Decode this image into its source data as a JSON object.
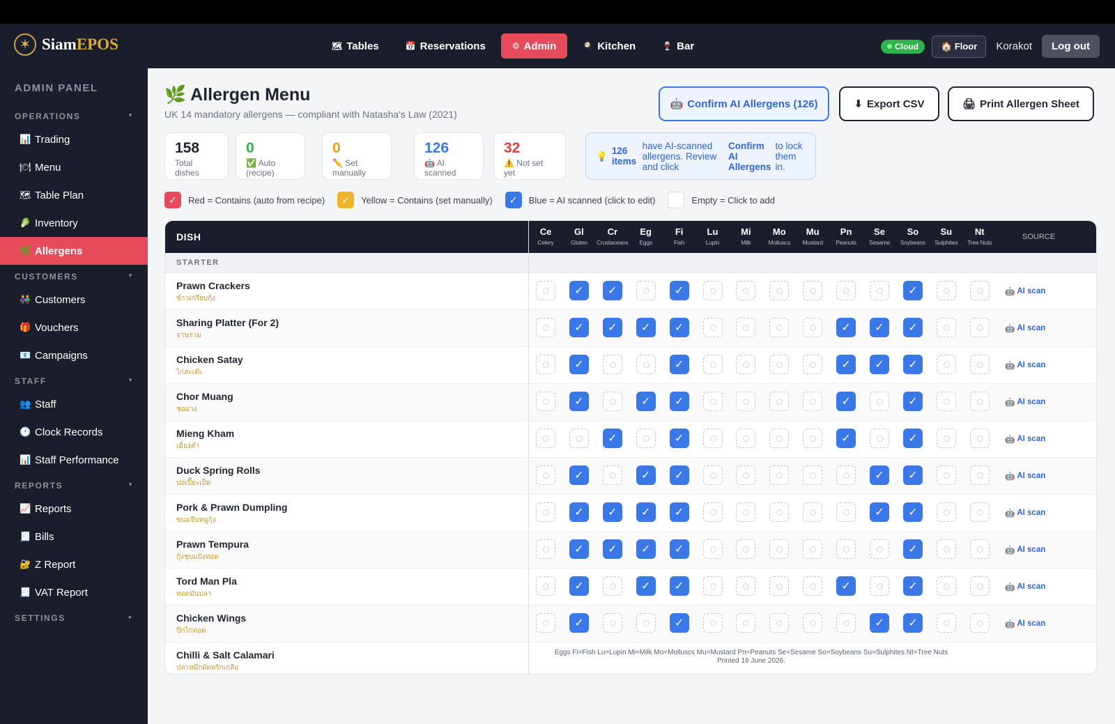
{
  "app": {
    "logo_main": "Siam",
    "logo_accent": "EPOS"
  },
  "nav": [
    {
      "icon": "🗺",
      "label": "Tables",
      "active": false
    },
    {
      "icon": "📅",
      "label": "Reservations",
      "active": false
    },
    {
      "icon": "⚙",
      "label": "Admin",
      "active": true
    },
    {
      "icon": "🍳",
      "label": "Kitchen",
      "active": false
    },
    {
      "icon": "🍷",
      "label": "Bar",
      "active": false
    }
  ],
  "header_right": {
    "cloud": "Cloud",
    "floor": "Floor",
    "user": "Korakot",
    "logout": "Log out"
  },
  "sidebar": {
    "title": "ADMIN PANEL",
    "sections": {
      "operations": "OPERATIONS",
      "customers": "CUSTOMERS",
      "staff": "STAFF",
      "reports": "REPORTS",
      "settings": "SETTINGS"
    },
    "items": {
      "trading": {
        "icon": "📊",
        "label": "Trading"
      },
      "menu": {
        "icon": "🍽",
        "label": "Menu"
      },
      "table_plan": {
        "icon": "🗺",
        "label": "Table Plan"
      },
      "inventory": {
        "icon": "🥬",
        "label": "Inventory"
      },
      "allergens": {
        "icon": "🌿",
        "label": "Allergens"
      },
      "customers": {
        "icon": "👫",
        "label": "Customers"
      },
      "vouchers": {
        "icon": "🎁",
        "label": "Vouchers"
      },
      "campaigns": {
        "icon": "📧",
        "label": "Campaigns"
      },
      "staff": {
        "icon": "👥",
        "label": "Staff"
      },
      "clock": {
        "icon": "🕐",
        "label": "Clock Records"
      },
      "perf": {
        "icon": "📊",
        "label": "Staff Performance"
      },
      "reports": {
        "icon": "📈",
        "label": "Reports"
      },
      "bills": {
        "icon": "🧾",
        "label": "Bills"
      },
      "z": {
        "icon": "🔐",
        "label": "Z Report"
      },
      "vat": {
        "icon": "🧾",
        "label": "VAT Report"
      }
    }
  },
  "page": {
    "icon": "🌿",
    "title": "Allergen Menu",
    "subtitle": "UK 14 mandatory allergens — compliant with Natasha's Law (2021)",
    "btn_confirm": "Confirm AI Allergens (126)",
    "btn_export": "Export CSV",
    "btn_print": "Print Allergen Sheet"
  },
  "stats": [
    {
      "num": "158",
      "label": "Total dishes",
      "color": "#1f2430"
    },
    {
      "num": "0",
      "label": "✅ Auto (recipe)",
      "color": "#2fb34a"
    },
    {
      "num": "0",
      "label": "✏️ Set manually",
      "color": "#e0a21c"
    },
    {
      "num": "126",
      "label": "🤖 AI scanned",
      "color": "#3b78e7"
    },
    {
      "num": "32",
      "label": "⚠️ Not set yet",
      "color": "#d9423f"
    }
  ],
  "info": {
    "icon": "💡",
    "count": "126 items",
    "text1": "have AI-scanned allergens. Review and click",
    "bold": "Confirm AI Allergens",
    "text2": "to lock them in."
  },
  "legend": [
    {
      "label": "Red = Contains (auto from recipe)",
      "color": "#e54b5a",
      "mark": "✓"
    },
    {
      "label": "Yellow = Contains (set manually)",
      "color": "#f0b429",
      "mark": "✓"
    },
    {
      "label": "Blue = AI scanned (click to edit)",
      "color": "#3b78e7",
      "mark": "✓"
    },
    {
      "label": "Empty = Click to add",
      "color": "#ffffff",
      "mark": ""
    }
  ],
  "table": {
    "dish_header": "DISH",
    "source_header": "SOURCE",
    "allergens": [
      {
        "code": "Ce",
        "name": "Celery"
      },
      {
        "code": "Gl",
        "name": "Gluten"
      },
      {
        "code": "Cr",
        "name": "Crustaceans"
      },
      {
        "code": "Eg",
        "name": "Eggs"
      },
      {
        "code": "Fi",
        "name": "Fish"
      },
      {
        "code": "Lu",
        "name": "Lupin"
      },
      {
        "code": "Mi",
        "name": "Milk"
      },
      {
        "code": "Mo",
        "name": "Molluscs"
      },
      {
        "code": "Mu",
        "name": "Mustard"
      },
      {
        "code": "Pn",
        "name": "Peanuts"
      },
      {
        "code": "Se",
        "name": "Sesame"
      },
      {
        "code": "So",
        "name": "Soybeans"
      },
      {
        "code": "Su",
        "name": "Sulphites"
      },
      {
        "code": "Nt",
        "name": "Tree Nuts"
      }
    ],
    "category": "STARTER",
    "rows": [
      {
        "en": "Prawn Crackers",
        "th": "ข้าวเกรียบกุ้ง",
        "a": [
          0,
          1,
          1,
          0,
          1,
          0,
          0,
          0,
          0,
          0,
          0,
          1,
          0,
          0
        ],
        "source": "AI scan"
      },
      {
        "en": "Sharing Platter (For 2)",
        "th": "จานรวม",
        "a": [
          0,
          1,
          1,
          1,
          1,
          0,
          0,
          0,
          0,
          1,
          1,
          1,
          0,
          0
        ],
        "source": "AI scan"
      },
      {
        "en": "Chicken Satay",
        "th": "ไก่สะเต๊ะ",
        "a": [
          0,
          1,
          0,
          0,
          1,
          0,
          0,
          0,
          0,
          1,
          1,
          1,
          0,
          0
        ],
        "source": "AI scan"
      },
      {
        "en": "Chor Muang",
        "th": "ช่อม่วง",
        "a": [
          0,
          1,
          0,
          1,
          1,
          0,
          0,
          0,
          0,
          1,
          0,
          1,
          0,
          0
        ],
        "source": "AI scan"
      },
      {
        "en": "Mieng Kham",
        "th": "เมี่ยงคำ",
        "a": [
          0,
          0,
          1,
          0,
          1,
          0,
          0,
          0,
          0,
          1,
          0,
          1,
          0,
          0
        ],
        "source": "AI scan"
      },
      {
        "en": "Duck Spring Rolls",
        "th": "ปอเปี๊ยะเป็ด",
        "a": [
          0,
          1,
          0,
          1,
          1,
          0,
          0,
          0,
          0,
          0,
          1,
          1,
          0,
          0
        ],
        "source": "AI scan"
      },
      {
        "en": "Pork & Prawn Dumpling",
        "th": "ขนมจีบหมูกุ้ง",
        "a": [
          0,
          1,
          1,
          1,
          1,
          0,
          0,
          0,
          0,
          0,
          1,
          1,
          0,
          0
        ],
        "source": "AI scan"
      },
      {
        "en": "Prawn Tempura",
        "th": "กุ้งชุบแป้งทอด",
        "a": [
          0,
          1,
          1,
          1,
          1,
          0,
          0,
          0,
          0,
          0,
          0,
          1,
          0,
          0
        ],
        "source": "AI scan"
      },
      {
        "en": "Tord Man Pla",
        "th": "ทอดมันปลา",
        "a": [
          0,
          1,
          0,
          1,
          1,
          0,
          0,
          0,
          0,
          1,
          0,
          1,
          0,
          0
        ],
        "source": "AI scan"
      },
      {
        "en": "Chicken Wings",
        "th": "ปีกไก่ทอด",
        "a": [
          0,
          1,
          0,
          0,
          1,
          0,
          0,
          0,
          0,
          0,
          1,
          1,
          0,
          0
        ],
        "source": "AI scan"
      },
      {
        "en": "Chilli & Salt Calamari",
        "th": "ปลาหมึกผัดพริกเกลือ",
        "a": null,
        "source": ""
      }
    ],
    "footer_line1": "Eggs Fi=Fish Lu=Lupin Mi=Milk Mo=Molluscs Mu=Mustard Pn=Peanuts Se=Sesame So=Soybeans Su=Sulphites Nt=Tree Nuts",
    "footer_line2": "Printed 16 June 2026."
  }
}
